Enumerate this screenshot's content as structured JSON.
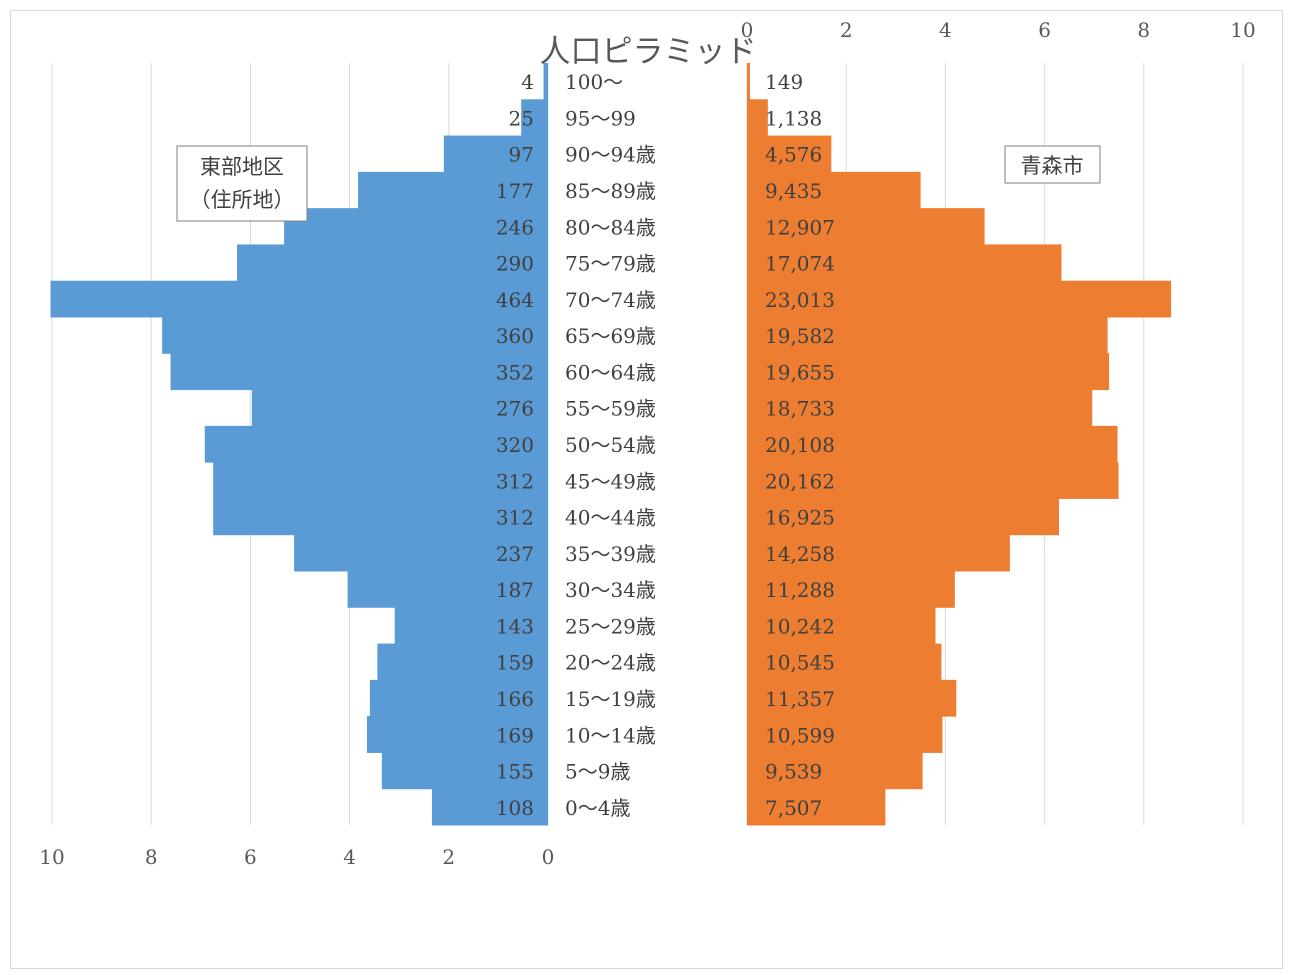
{
  "chart_data": {
    "type": "bar",
    "orientation": "horizontal",
    "title": "人口ピラミッド",
    "categories": [
      "100～",
      "95～99",
      "90～94歳",
      "85～89歳",
      "80～84歳",
      "75～79歳",
      "70～74歳",
      "65～69歳",
      "60～64歳",
      "55～59歳",
      "50～54歳",
      "45～49歳",
      "40～44歳",
      "35～39歳",
      "30～34歳",
      "25～29歳",
      "20～24歳",
      "15～19歳",
      "10～14歳",
      "5～9歳",
      "0～4歳"
    ],
    "series": [
      {
        "name": "東部地区（住所地）",
        "color": "#5B9BD5",
        "counts": [
          4,
          25,
          97,
          177,
          246,
          290,
          464,
          360,
          352,
          276,
          320,
          312,
          312,
          237,
          187,
          143,
          159,
          166,
          169,
          155,
          108
        ],
        "count_labels": [
          "4",
          "25",
          "97",
          "177",
          "246",
          "290",
          "464",
          "360",
          "352",
          "276",
          "320",
          "312",
          "312",
          "237",
          "187",
          "143",
          "159",
          "166",
          "169",
          "155",
          "108"
        ],
        "percent": [
          0.09,
          0.54,
          2.1,
          3.83,
          5.32,
          6.27,
          10.03,
          7.78,
          7.61,
          5.97,
          6.92,
          6.75,
          6.75,
          5.12,
          4.04,
          3.09,
          3.44,
          3.59,
          3.65,
          3.35,
          2.34
        ]
      },
      {
        "name": "青森市",
        "color": "#ED7D31",
        "counts": [
          149,
          1138,
          4576,
          9435,
          12907,
          17074,
          23013,
          19582,
          19655,
          18733,
          20108,
          20162,
          16925,
          14258,
          11288,
          10242,
          10545,
          11357,
          10599,
          9539,
          7507
        ],
        "count_labels": [
          "149",
          "1,138",
          "4,576",
          "9,435",
          "12,907",
          "17,074",
          "23,013",
          "19,582",
          "19,655",
          "18,733",
          "20,108",
          "20,162",
          "16,925",
          "14,258",
          "11,288",
          "10,242",
          "10,545",
          "11,357",
          "10,599",
          "9,539",
          "7,507"
        ],
        "percent": [
          0.06,
          0.42,
          1.7,
          3.5,
          4.79,
          6.34,
          8.55,
          7.27,
          7.3,
          6.96,
          7.47,
          7.49,
          6.29,
          5.3,
          4.19,
          3.8,
          3.92,
          4.22,
          3.94,
          3.54,
          2.79
        ]
      }
    ],
    "left_axis": {
      "ticks": [
        "10",
        "8",
        "6",
        "4",
        "2",
        "0"
      ],
      "range": [
        0,
        10
      ]
    },
    "right_axis": {
      "ticks": [
        "0",
        "2",
        "4",
        "6",
        "8",
        "10"
      ],
      "range": [
        0,
        10
      ]
    },
    "legend_left": {
      "line1": "東部地区",
      "line2": "（住所地）"
    },
    "legend_right": "青森市",
    "grid": true
  }
}
